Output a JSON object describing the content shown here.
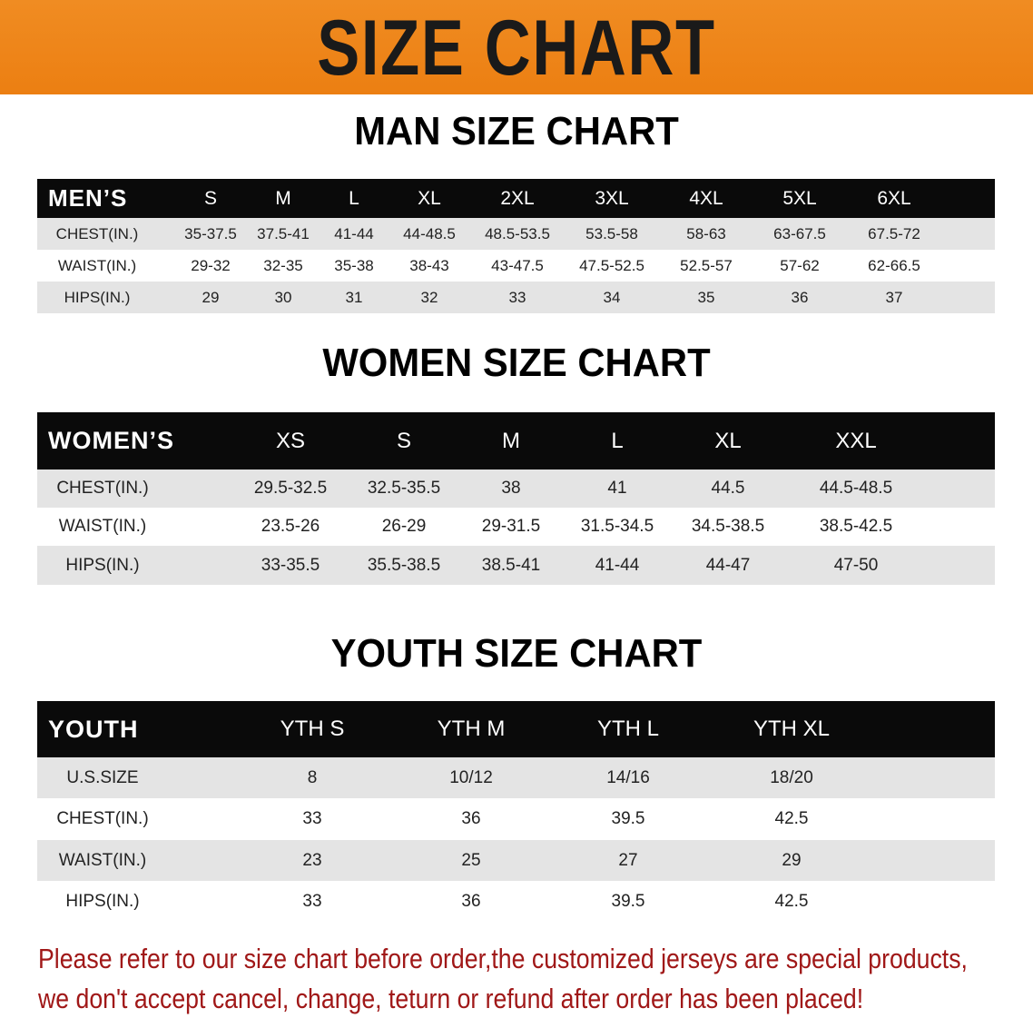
{
  "banner": {
    "title": "SIZE CHART",
    "color": "#ef861b"
  },
  "men": {
    "title": "MAN SIZE CHART",
    "header": "MEN’S",
    "sizes": [
      "S",
      "M",
      "L",
      "XL",
      "2XL",
      "3XL",
      "4XL",
      "5XL",
      "6XL"
    ],
    "rows": [
      {
        "label": "CHEST(IN.)",
        "values": [
          "35-37.5",
          "37.5-41",
          "41-44",
          "44-48.5",
          "48.5-53.5",
          "53.5-58",
          "58-63",
          "63-67.5",
          "67.5-72"
        ]
      },
      {
        "label": "WAIST(IN.)",
        "values": [
          "29-32",
          "32-35",
          "35-38",
          "38-43",
          "43-47.5",
          "47.5-52.5",
          "52.5-57",
          "57-62",
          "62-66.5"
        ]
      },
      {
        "label": "HIPS(IN.)",
        "values": [
          "29",
          "30",
          "31",
          "32",
          "33",
          "34",
          "35",
          "36",
          "37"
        ]
      }
    ]
  },
  "women": {
    "title": "WOMEN SIZE CHART",
    "header": "WOMEN’S",
    "sizes": [
      "XS",
      "S",
      "M",
      "L",
      "XL",
      "XXL"
    ],
    "rows": [
      {
        "label": "CHEST(IN.)",
        "values": [
          "29.5-32.5",
          "32.5-35.5",
          "38",
          "41",
          "44.5",
          "44.5-48.5"
        ]
      },
      {
        "label": "WAIST(IN.)",
        "values": [
          "23.5-26",
          "26-29",
          "29-31.5",
          "31.5-34.5",
          "34.5-38.5",
          "38.5-42.5"
        ]
      },
      {
        "label": "HIPS(IN.)",
        "values": [
          "33-35.5",
          "35.5-38.5",
          "38.5-41",
          "41-44",
          "44-47",
          "47-50"
        ]
      }
    ]
  },
  "youth": {
    "title": "YOUTH SIZE CHART",
    "header": "YOUTH",
    "sizes": [
      "YTH S",
      "YTH M",
      "YTH L",
      "YTH XL"
    ],
    "rows": [
      {
        "label": "U.S.SIZE",
        "values": [
          "8",
          "10/12",
          "14/16",
          "18/20"
        ]
      },
      {
        "label": "CHEST(IN.)",
        "values": [
          "33",
          "36",
          "39.5",
          "42.5"
        ]
      },
      {
        "label": "WAIST(IN.)",
        "values": [
          "23",
          "25",
          "27",
          "29"
        ]
      },
      {
        "label": "HIPS(IN.)",
        "values": [
          "33",
          "36",
          "39.5",
          "42.5"
        ]
      }
    ]
  },
  "notice": {
    "line1": "Please refer to our size chart before order,the customized jerseys are special products,",
    "line2": "we don't accept cancel, change, teturn or refund after order has been placed!",
    "color": "#a01818"
  }
}
